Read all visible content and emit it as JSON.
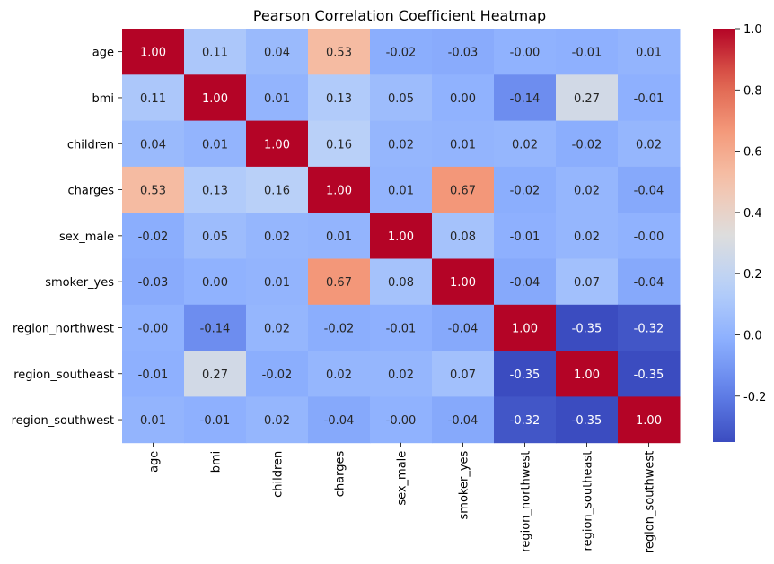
{
  "chart_data": {
    "type": "heatmap",
    "title": "Pearson Correlation Coefficient Heatmap",
    "xlabel": "",
    "ylabel": "",
    "rows": [
      "age",
      "bmi",
      "children",
      "charges",
      "sex_male",
      "smoker_yes",
      "region_northwest",
      "region_southeast",
      "region_southwest"
    ],
    "columns": [
      "age",
      "bmi",
      "children",
      "charges",
      "sex_male",
      "smoker_yes",
      "region_northwest",
      "region_southeast",
      "region_southwest"
    ],
    "values": [
      [
        1.0,
        0.11,
        0.04,
        0.53,
        -0.02,
        -0.03,
        -0.0,
        -0.01,
        0.01
      ],
      [
        0.11,
        1.0,
        0.01,
        0.13,
        0.05,
        0.0,
        -0.14,
        0.27,
        -0.01
      ],
      [
        0.04,
        0.01,
        1.0,
        0.16,
        0.02,
        0.01,
        0.02,
        -0.02,
        0.02
      ],
      [
        0.53,
        0.13,
        0.16,
        1.0,
        0.01,
        0.67,
        -0.02,
        0.02,
        -0.04
      ],
      [
        -0.02,
        0.05,
        0.02,
        0.01,
        1.0,
        0.08,
        -0.01,
        0.02,
        -0.0
      ],
      [
        -0.03,
        0.0,
        0.01,
        0.67,
        0.08,
        1.0,
        -0.04,
        0.07,
        -0.04
      ],
      [
        -0.0,
        -0.14,
        0.02,
        -0.02,
        -0.01,
        -0.04,
        1.0,
        -0.35,
        -0.32
      ],
      [
        -0.01,
        0.27,
        -0.02,
        0.02,
        0.02,
        0.07,
        -0.35,
        1.0,
        -0.35
      ],
      [
        0.01,
        -0.01,
        0.02,
        -0.04,
        -0.0,
        -0.04,
        -0.32,
        -0.35,
        1.0
      ]
    ],
    "annotations": [
      [
        "1.00",
        "0.11",
        "0.04",
        "0.53",
        "-0.02",
        "-0.03",
        "-0.00",
        "-0.01",
        "0.01"
      ],
      [
        "0.11",
        "1.00",
        "0.01",
        "0.13",
        "0.05",
        "0.00",
        "-0.14",
        "0.27",
        "-0.01"
      ],
      [
        "0.04",
        "0.01",
        "1.00",
        "0.16",
        "0.02",
        "0.01",
        "0.02",
        "-0.02",
        "0.02"
      ],
      [
        "0.53",
        "0.13",
        "0.16",
        "1.00",
        "0.01",
        "0.67",
        "-0.02",
        "0.02",
        "-0.04"
      ],
      [
        "-0.02",
        "0.05",
        "0.02",
        "0.01",
        "1.00",
        "0.08",
        "-0.01",
        "0.02",
        "-0.00"
      ],
      [
        "-0.03",
        "0.00",
        "0.01",
        "0.67",
        "0.08",
        "1.00",
        "-0.04",
        "0.07",
        "-0.04"
      ],
      [
        "-0.00",
        "-0.14",
        "0.02",
        "-0.02",
        "-0.01",
        "-0.04",
        "1.00",
        "-0.35",
        "-0.32"
      ],
      [
        "-0.01",
        "0.27",
        "-0.02",
        "0.02",
        "0.02",
        "0.07",
        "-0.35",
        "1.00",
        "-0.35"
      ],
      [
        "0.01",
        "-0.01",
        "0.02",
        "-0.04",
        "-0.00",
        "-0.04",
        "-0.32",
        "-0.35",
        "1.00"
      ]
    ],
    "colormap": "coolwarm",
    "vmin": -0.35,
    "vmax": 1.0,
    "colorbar": {
      "ticks": [
        -0.2,
        0.0,
        0.2,
        0.4,
        0.6,
        0.8,
        1.0
      ],
      "tick_labels": [
        "-0.2",
        "0.0",
        "0.2",
        "0.4",
        "0.6",
        "0.8",
        "1.0"
      ],
      "placement": "right"
    },
    "grid": false
  }
}
